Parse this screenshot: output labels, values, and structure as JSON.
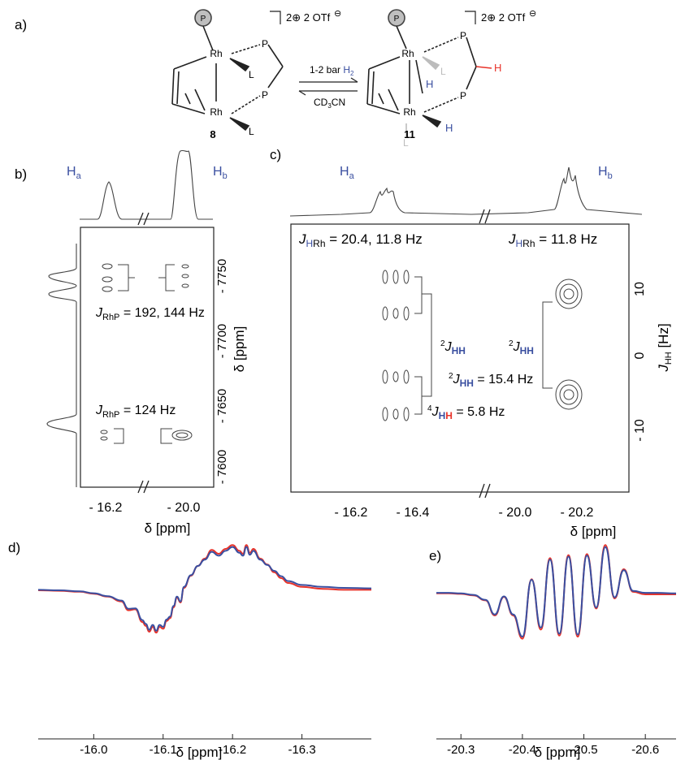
{
  "panel_letters": {
    "a": "a)",
    "b": "b)",
    "c": "c)",
    "d": "d)",
    "e": "e)"
  },
  "scheme": {
    "P_circle": "P",
    "Rh": "Rh",
    "P": "P",
    "L": "L",
    "H": "H",
    "charge_label": "2⊕ 2 OTf",
    "anion_charge": "⊖",
    "arrow_top": "1-2 bar ",
    "arrow_top_H2": "H",
    "arrow_top_H2_sub": "2",
    "arrow_bottom": "CD",
    "arrow_bottom_sub": "3",
    "arrow_bottom_rest": "CN",
    "compound_left": "8",
    "compound_right": "11"
  },
  "panel_b": {
    "label_Ha": "H",
    "label_Ha_sub": "a",
    "label_Hb": "H",
    "label_Hb_sub": "b",
    "coupling_top_J": "J",
    "coupling_top_sub": "RhP",
    "coupling_top_val": " = 192, 144 Hz",
    "coupling_bot_J": "J",
    "coupling_bot_sub": "RhP",
    "coupling_bot_val": " = 124 Hz",
    "x_ticks": [
      "- 16.2",
      "- 20.0"
    ],
    "x_label": "δ [ppm]",
    "y_ticks": [
      "- 7750",
      "- 7700",
      "- 7650",
      "- 7600"
    ],
    "y_label": "δ [ppm]"
  },
  "panel_c": {
    "label_Ha": "H",
    "label_Ha_sub": "a",
    "label_Hb": "H",
    "label_Hb_sub": "b",
    "J_left": "J",
    "J_left_sub_H": "H",
    "J_left_sub_Rh": "Rh",
    "J_left_val": " = 20.4, 11.8 Hz",
    "J_right": "J",
    "J_right_sub_H": "H",
    "J_right_sub_Rh": "Rh",
    "J_right_val": " = 11.8 Hz",
    "JHH_2": "J",
    "JHH_2_sup": "2",
    "JHH_2_sub": "HH",
    "JHH_2_val": " = 15.4 Hz",
    "JHH_4": "J",
    "JHH_4_sup": "4",
    "JHH_4_sub_H1": "H",
    "JHH_4_sub_H2": "H",
    "JHH_4_val": " = 5.8 Hz",
    "x_ticks": [
      "- 16.2",
      "- 16.4",
      "- 20.0",
      "- 20.2"
    ],
    "x_label": "δ [ppm]",
    "y_ticks": [
      "10",
      "0",
      "- 10"
    ],
    "y_label_J": "J",
    "y_label_sub": "HH",
    "y_label_unit": " [Hz]"
  },
  "panel_d": {
    "x_ticks": [
      "-16.0",
      "-16.1",
      "-16.2",
      "-16.3"
    ],
    "x_label": "δ [ppm]"
  },
  "panel_e": {
    "x_ticks": [
      "-20.3",
      "-20.4",
      "-20.5",
      "-20.6"
    ],
    "x_label": "δ [ppm]"
  },
  "colors": {
    "blue": "#3a4fa0",
    "red": "#e8332a",
    "gray": "#9a9a9a",
    "dark": "#222222"
  },
  "chart_data": [
    {
      "type": "line",
      "panel": "d",
      "xlabel": "δ [ppm]",
      "xlim": [
        -15.92,
        -16.4
      ],
      "x_ticks": [
        -16.0,
        -16.1,
        -16.2,
        -16.3
      ],
      "series": [
        {
          "color": "#e8332a",
          "x": [
            -15.92,
            -15.95,
            -15.98,
            -16.0,
            -16.02,
            -16.04,
            -16.05,
            -16.06,
            -16.07,
            -16.075,
            -16.08,
            -16.085,
            -16.09,
            -16.095,
            -16.1,
            -16.105,
            -16.11,
            -16.115,
            -16.12,
            -16.125,
            -16.13,
            -16.14,
            -16.15,
            -16.16,
            -16.17,
            -16.18,
            -16.19,
            -16.2,
            -16.21,
            -16.215,
            -16.22,
            -16.225,
            -16.23,
            -16.24,
            -16.25,
            -16.26,
            -16.27,
            -16.28,
            -16.3,
            -16.33,
            -16.36,
            -16.4
          ],
          "y": [
            0.05,
            0.04,
            0.02,
            -0.02,
            -0.08,
            -0.18,
            -0.36,
            -0.34,
            -0.6,
            -0.68,
            -0.8,
            -0.7,
            -0.82,
            -0.7,
            -0.74,
            -0.58,
            -0.52,
            -0.3,
            -0.1,
            -0.2,
            0.1,
            0.35,
            0.55,
            0.7,
            0.88,
            0.8,
            0.9,
            0.98,
            0.86,
            0.8,
            0.98,
            0.82,
            0.9,
            0.7,
            0.58,
            0.42,
            0.3,
            0.2,
            0.12,
            0.08,
            0.06,
            0.06
          ]
        },
        {
          "color": "#3a4fa0",
          "x": [
            -15.92,
            -15.95,
            -15.98,
            -16.0,
            -16.02,
            -16.04,
            -16.05,
            -16.06,
            -16.07,
            -16.075,
            -16.08,
            -16.085,
            -16.09,
            -16.095,
            -16.1,
            -16.105,
            -16.11,
            -16.115,
            -16.12,
            -16.125,
            -16.13,
            -16.14,
            -16.15,
            -16.16,
            -16.17,
            -16.18,
            -16.19,
            -16.2,
            -16.21,
            -16.215,
            -16.22,
            -16.225,
            -16.23,
            -16.24,
            -16.25,
            -16.26,
            -16.27,
            -16.28,
            -16.3,
            -16.33,
            -16.36,
            -16.4
          ],
          "y": [
            0.06,
            0.05,
            0.03,
            -0.01,
            -0.07,
            -0.16,
            -0.33,
            -0.32,
            -0.56,
            -0.64,
            -0.76,
            -0.66,
            -0.78,
            -0.66,
            -0.7,
            -0.55,
            -0.49,
            -0.27,
            -0.08,
            -0.18,
            0.12,
            0.36,
            0.55,
            0.68,
            0.84,
            0.76,
            0.86,
            0.94,
            0.82,
            0.76,
            0.94,
            0.78,
            0.86,
            0.68,
            0.57,
            0.45,
            0.34,
            0.24,
            0.16,
            0.12,
            0.1,
            0.09
          ]
        }
      ]
    },
    {
      "type": "line",
      "panel": "e",
      "xlabel": "δ [ppm]",
      "xlim": [
        -20.26,
        -20.65
      ],
      "x_ticks": [
        -20.3,
        -20.4,
        -20.5,
        -20.6
      ],
      "series": [
        {
          "color": "#e8332a",
          "x": [
            -20.26,
            -20.28,
            -20.3,
            -20.32,
            -20.34,
            -20.355,
            -20.37,
            -20.385,
            -20.4,
            -20.415,
            -20.43,
            -20.445,
            -20.46,
            -20.475,
            -20.49,
            -20.505,
            -20.52,
            -20.535,
            -20.55,
            -20.565,
            -20.58,
            -20.6,
            -20.62,
            -20.65
          ],
          "y": [
            0.02,
            0.02,
            0.01,
            -0.02,
            -0.12,
            -0.42,
            -0.05,
            -0.42,
            -0.88,
            0.3,
            -0.7,
            0.72,
            -0.82,
            0.78,
            -0.84,
            0.8,
            -0.28,
            0.98,
            -0.08,
            0.5,
            0.05,
            0.0,
            0.0,
            0.0
          ]
        },
        {
          "color": "#3a4fa0",
          "x": [
            -20.26,
            -20.28,
            -20.3,
            -20.32,
            -20.34,
            -20.355,
            -20.37,
            -20.385,
            -20.4,
            -20.415,
            -20.43,
            -20.445,
            -20.46,
            -20.475,
            -20.49,
            -20.505,
            -20.52,
            -20.535,
            -20.55,
            -20.565,
            -20.58,
            -20.6,
            -20.62,
            -20.65
          ],
          "y": [
            0.03,
            0.03,
            0.02,
            -0.01,
            -0.11,
            -0.4,
            -0.04,
            -0.4,
            -0.84,
            0.29,
            -0.66,
            0.69,
            -0.78,
            0.75,
            -0.8,
            0.77,
            -0.26,
            0.94,
            -0.06,
            0.48,
            0.07,
            0.03,
            0.03,
            0.02
          ]
        }
      ]
    }
  ]
}
